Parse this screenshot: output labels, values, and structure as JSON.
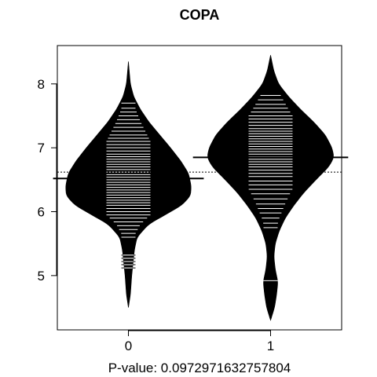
{
  "chart_data": {
    "type": "beanplot",
    "title": "COPA",
    "xlabel": "P-value: 0.0972971632757804",
    "ylabel": "",
    "categories": [
      "0",
      "1"
    ],
    "x_tick_labels": [
      "0",
      "1"
    ],
    "y_ticks": [
      5,
      6,
      7,
      8
    ],
    "ylim": [
      4.15,
      8.6
    ],
    "grid": false,
    "overall_mean": 6.62,
    "colors": {
      "fill": "#000000",
      "lines": "#ffffff",
      "background": "#ffffff"
    },
    "series": [
      {
        "category": "0",
        "mean": 6.52,
        "y_min": 4.5,
        "y_max": 8.35,
        "density": [
          [
            4.5,
            0.0
          ],
          [
            4.7,
            0.03
          ],
          [
            5.0,
            0.05
          ],
          [
            5.2,
            0.07
          ],
          [
            5.4,
            0.09
          ],
          [
            5.6,
            0.13
          ],
          [
            5.8,
            0.3
          ],
          [
            5.95,
            0.55
          ],
          [
            6.1,
            0.8
          ],
          [
            6.25,
            0.93
          ],
          [
            6.4,
            0.94
          ],
          [
            6.6,
            0.9
          ],
          [
            6.8,
            0.78
          ],
          [
            7.0,
            0.63
          ],
          [
            7.2,
            0.47
          ],
          [
            7.4,
            0.31
          ],
          [
            7.6,
            0.18
          ],
          [
            7.8,
            0.08
          ],
          [
            8.0,
            0.03
          ],
          [
            8.35,
            0.0
          ]
        ],
        "observations": [
          5.12,
          5.17,
          5.22,
          5.27,
          5.32,
          5.6,
          5.66,
          5.72,
          5.78,
          5.84,
          5.9,
          5.95,
          6.0,
          6.05,
          6.1,
          6.14,
          6.18,
          6.22,
          6.26,
          6.3,
          6.34,
          6.38,
          6.42,
          6.46,
          6.5,
          6.54,
          6.58,
          6.62,
          6.66,
          6.7,
          6.74,
          6.78,
          6.82,
          6.86,
          6.9,
          6.95,
          7.0,
          7.05,
          7.1,
          7.15,
          7.2,
          7.26,
          7.32,
          7.38,
          7.44,
          7.5,
          7.56,
          7.62,
          7.7
        ]
      },
      {
        "category": "1",
        "mean": 6.85,
        "y_min": 4.3,
        "y_max": 8.45,
        "density": [
          [
            4.3,
            0.0
          ],
          [
            4.5,
            0.06
          ],
          [
            4.7,
            0.09
          ],
          [
            4.9,
            0.11
          ],
          [
            5.1,
            0.07
          ],
          [
            5.3,
            0.05
          ],
          [
            5.5,
            0.07
          ],
          [
            5.7,
            0.13
          ],
          [
            5.9,
            0.22
          ],
          [
            6.1,
            0.35
          ],
          [
            6.3,
            0.5
          ],
          [
            6.5,
            0.68
          ],
          [
            6.7,
            0.87
          ],
          [
            6.85,
            0.95
          ],
          [
            7.0,
            0.92
          ],
          [
            7.2,
            0.82
          ],
          [
            7.4,
            0.65
          ],
          [
            7.6,
            0.45
          ],
          [
            7.8,
            0.27
          ],
          [
            8.0,
            0.12
          ],
          [
            8.2,
            0.05
          ],
          [
            8.45,
            0.0
          ]
        ],
        "observations": [
          4.92,
          5.75,
          5.82,
          5.9,
          5.98,
          6.05,
          6.12,
          6.2,
          6.28,
          6.35,
          6.42,
          6.48,
          6.55,
          6.6,
          6.65,
          6.7,
          6.74,
          6.78,
          6.82,
          6.86,
          6.9,
          6.94,
          6.98,
          7.02,
          7.06,
          7.1,
          7.14,
          7.18,
          7.22,
          7.26,
          7.3,
          7.35,
          7.4,
          7.45,
          7.5,
          7.56,
          7.62,
          7.68,
          7.75,
          7.82
        ]
      }
    ]
  }
}
